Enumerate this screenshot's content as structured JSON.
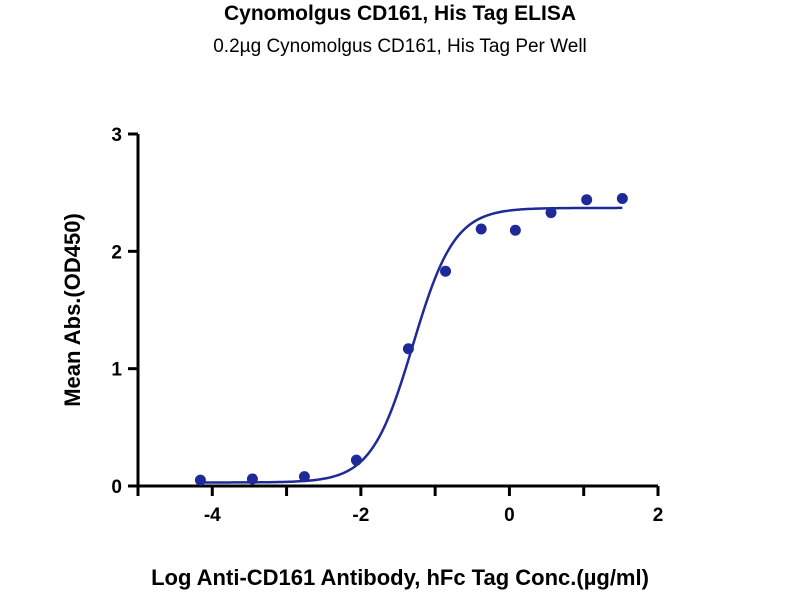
{
  "chart_data": {
    "type": "scatter",
    "title": "Cynomolgus CD161, His Tag ELISA",
    "subtitle": "0.2µg Cynomolgus CD161, His Tag Per Well",
    "xlabel": "Log Anti-CD161 Antibody, hFc Tag Conc.(µg/ml)",
    "ylabel": "Mean Abs.(OD450)",
    "xlim": [
      -5,
      2
    ],
    "ylim": [
      0,
      3
    ],
    "x_ticks": [
      -4,
      -2,
      0,
      2
    ],
    "y_ticks": [
      0,
      1,
      2,
      3
    ],
    "x_tick_labels": [
      "-4",
      "-2",
      "0",
      "2"
    ],
    "y_tick_labels": [
      "0",
      "1",
      "2",
      "3"
    ],
    "grid": false,
    "colors": {
      "series": "#1f2a99",
      "axis": "#000000"
    },
    "series": [
      {
        "points": [
          {
            "x": -4.16,
            "y": 0.05
          },
          {
            "x": -3.46,
            "y": 0.06
          },
          {
            "x": -2.76,
            "y": 0.08
          },
          {
            "x": -2.06,
            "y": 0.22
          },
          {
            "x": -1.36,
            "y": 1.17
          },
          {
            "x": -0.86,
            "y": 1.83
          },
          {
            "x": -0.38,
            "y": 2.19
          },
          {
            "x": 0.08,
            "y": 2.18
          },
          {
            "x": 0.56,
            "y": 2.33
          },
          {
            "x": 1.04,
            "y": 2.44
          },
          {
            "x": 1.52,
            "y": 2.45
          }
        ],
        "fit": {
          "model": "4PL",
          "bottom": 0.03,
          "top": 2.37,
          "logEC50": -1.3,
          "hill": 1.55,
          "x_range": [
            -4.16,
            1.52
          ]
        }
      }
    ]
  }
}
